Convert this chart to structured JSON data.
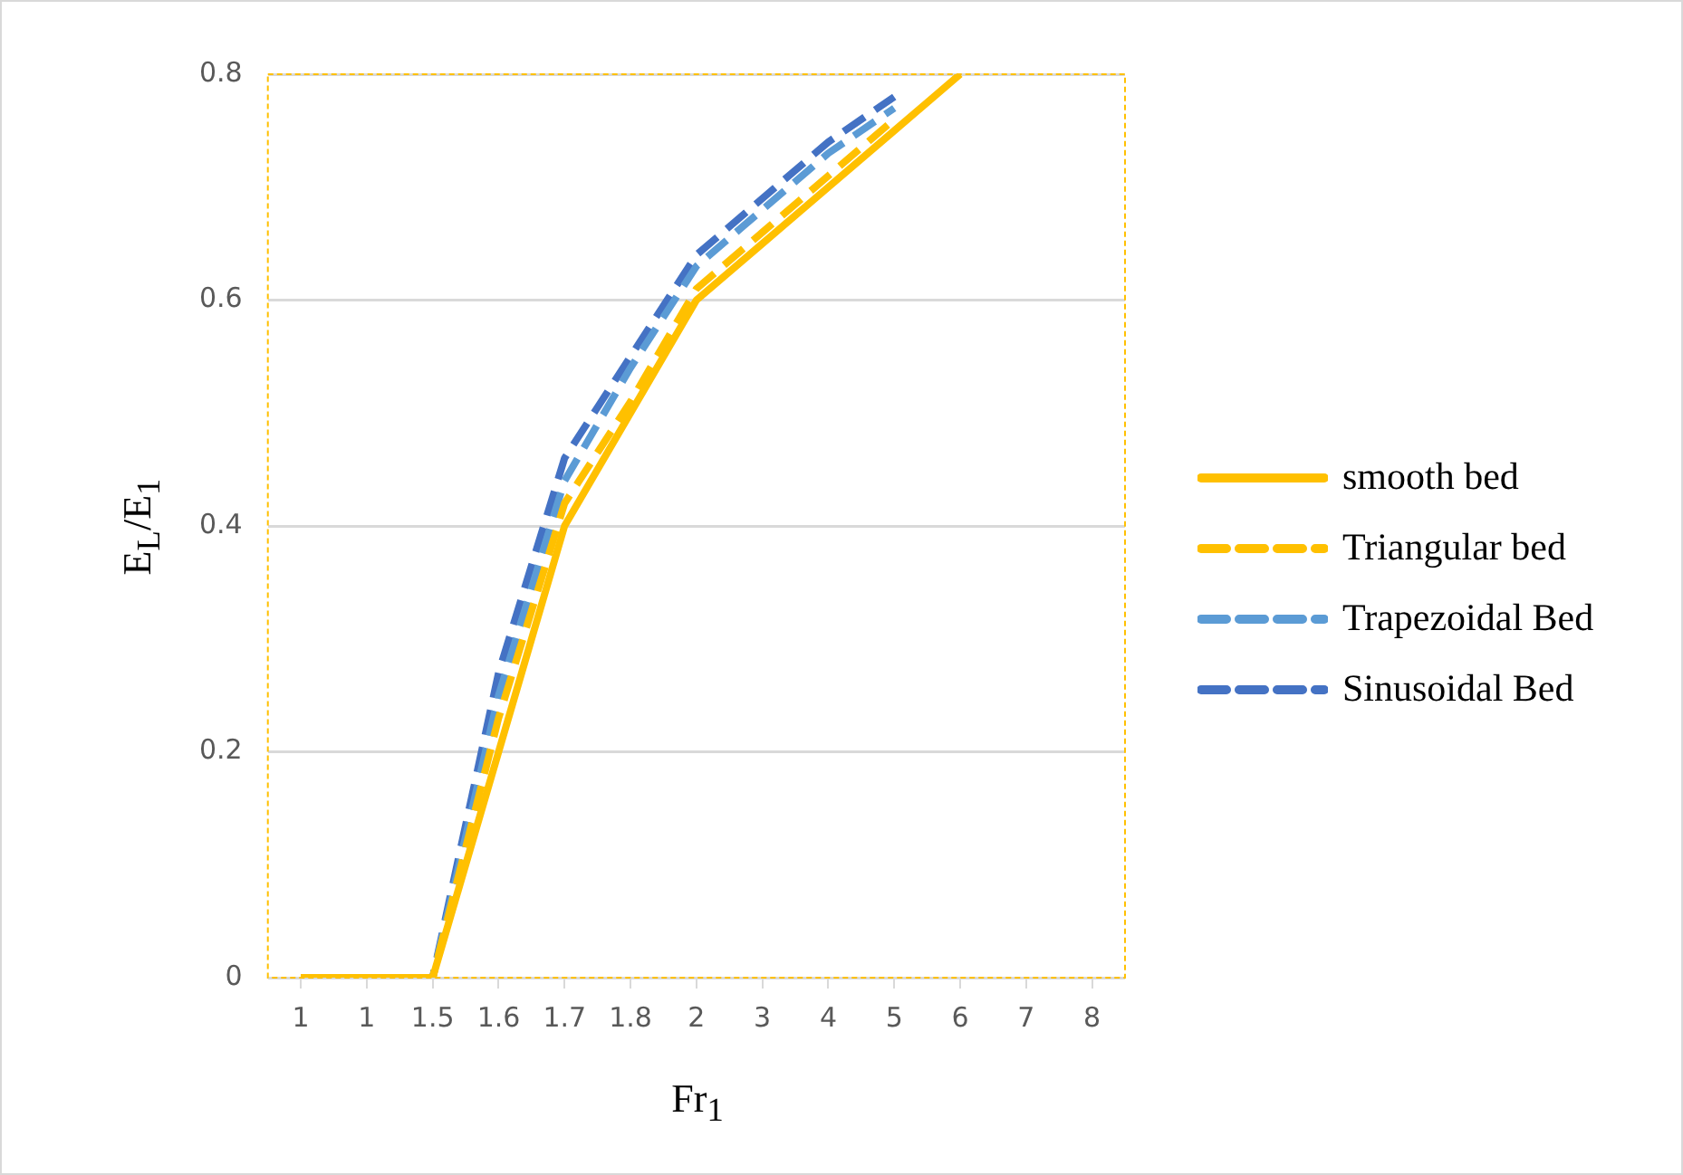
{
  "chart_data": {
    "type": "line",
    "xlabel": "Fr$_{1}$",
    "ylabel": "E$_{L}$/E$_{1}$",
    "categories": [
      "1",
      "1",
      "1.5",
      "1.6",
      "1.7",
      "1.8",
      "2",
      "3",
      "4",
      "5",
      "6",
      "7",
      "8"
    ],
    "series": [
      {
        "name": "smooth bed",
        "color": "#ffc000",
        "line_style": "solid",
        "values": [
          0,
          0,
          0,
          0.2,
          0.4,
          0.5,
          0.6,
          0.65,
          0.7,
          0.75,
          0.8,
          null,
          null
        ]
      },
      {
        "name": "Triangular bed",
        "color": "#ffc000",
        "line_style": "dashed",
        "values": [
          0,
          0,
          0,
          0.23,
          0.42,
          0.51,
          0.61,
          0.66,
          0.71,
          0.76,
          null,
          null,
          null
        ]
      },
      {
        "name": "Trapezoidal Bed",
        "color": "#5b9bd5",
        "line_style": "dashed",
        "values": [
          0,
          0,
          0,
          0.25,
          0.44,
          0.54,
          0.63,
          0.68,
          0.73,
          0.77,
          null,
          null,
          null
        ]
      },
      {
        "name": "Sinusoidal Bed",
        "color": "#4472c4",
        "line_style": "dashed",
        "values": [
          0,
          0,
          0,
          0.27,
          0.46,
          0.55,
          0.64,
          0.69,
          0.74,
          0.78,
          null,
          null,
          null
        ]
      }
    ],
    "ylim": [
      0,
      0.8
    ],
    "yticks": [
      0,
      0.2,
      0.4,
      0.6,
      0.8
    ],
    "grid": "y",
    "legend": "right"
  }
}
